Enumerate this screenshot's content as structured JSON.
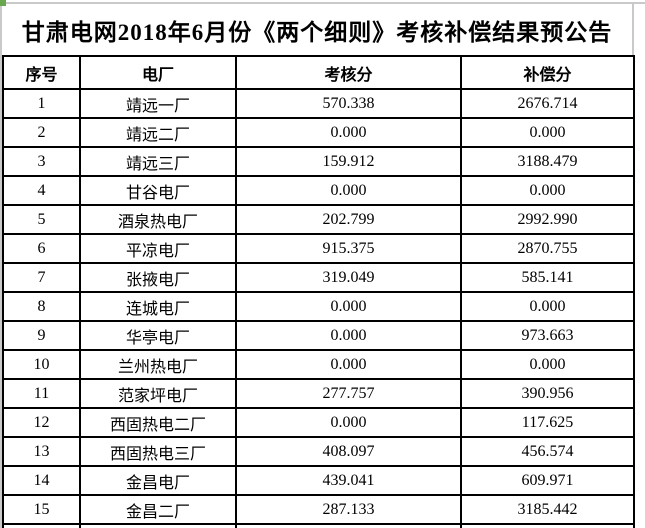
{
  "title": "甘肃电网2018年6月份《两个细则》考核补偿结果预公告",
  "decorations": {
    "corner_marker_color": "#6aa84f",
    "gridline_color": "#c9c9c9",
    "table_border_color": "#000000",
    "text_color": "#000000",
    "background_color": "#ffffff"
  },
  "table": {
    "columns": [
      "序号",
      "电厂",
      "考核分",
      "补偿分"
    ],
    "rows": [
      [
        "1",
        "靖远一厂",
        "570.338",
        "2676.714"
      ],
      [
        "2",
        "靖远二厂",
        "0.000",
        "0.000"
      ],
      [
        "3",
        "靖远三厂",
        "159.912",
        "3188.479"
      ],
      [
        "4",
        "甘谷电厂",
        "0.000",
        "0.000"
      ],
      [
        "5",
        "酒泉热电厂",
        "202.799",
        "2992.990"
      ],
      [
        "6",
        "平凉电厂",
        "915.375",
        "2870.755"
      ],
      [
        "7",
        "张掖电厂",
        "319.049",
        "585.141"
      ],
      [
        "8",
        "连城电厂",
        "0.000",
        "0.000"
      ],
      [
        "9",
        "华亭电厂",
        "0.000",
        "973.663"
      ],
      [
        "10",
        "兰州热电厂",
        "0.000",
        "0.000"
      ],
      [
        "11",
        "范家坪电厂",
        "277.757",
        "390.956"
      ],
      [
        "12",
        "西固热电二厂",
        "0.000",
        "117.625"
      ],
      [
        "13",
        "西固热电三厂",
        "408.097",
        "456.574"
      ],
      [
        "14",
        "金昌电厂",
        "439.041",
        "609.971"
      ],
      [
        "15",
        "金昌二厂",
        "287.133",
        "3185.442"
      ]
    ]
  }
}
